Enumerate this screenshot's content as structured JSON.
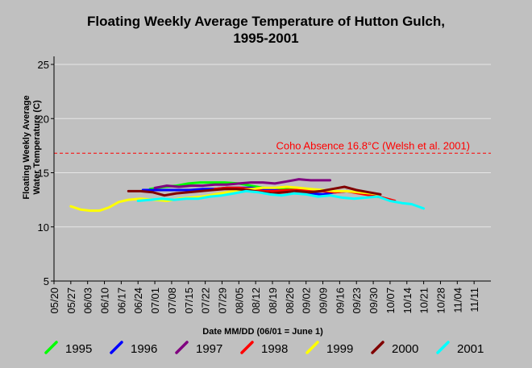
{
  "chart_data": {
    "type": "line",
    "title_line1": "Floating Weekly Average Temperature of Hutton Gulch,",
    "title_line2": "1995-2001",
    "ylabel_line1": "Floating Weekly Average",
    "ylabel_line2": "Water Temperature (C)",
    "xlabel": "Date MM/DD (06/01 = June 1)",
    "ylim": [
      5,
      25
    ],
    "yticks": [
      5,
      10,
      15,
      20,
      25
    ],
    "xticks": [
      "05/20",
      "05/27",
      "06/03",
      "06/10",
      "06/17",
      "06/24",
      "07/01",
      "07/08",
      "07/15",
      "07/22",
      "07/29",
      "08/05",
      "08/12",
      "08/19",
      "08/26",
      "09/02",
      "09/09",
      "09/16",
      "09/23",
      "09/30",
      "10/07",
      "10/14",
      "10/21",
      "10/28",
      "11/04",
      "11/11"
    ],
    "x_start": "05/20",
    "x_end": "11/18",
    "grid": "horizontal",
    "legend_position": "bottom",
    "threshold": {
      "value": 16.8,
      "label": "Coho Absence 16.8°C (Welsh et al. 2001)",
      "color": "#ff0000"
    },
    "series": [
      {
        "name": "1995",
        "color": "#00ff00",
        "x": [
          "06/29",
          "07/05",
          "07/10",
          "07/15",
          "07/20",
          "07/25",
          "07/30",
          "08/05",
          "08/10",
          "08/15",
          "08/20",
          "08/25",
          "08/30"
        ],
        "y": [
          13.5,
          13.7,
          13.8,
          14.0,
          14.1,
          14.1,
          14.1,
          14.0,
          13.8,
          13.6,
          13.5,
          13.5,
          13.4
        ]
      },
      {
        "name": "1996",
        "color": "#0000ff",
        "x": [
          "06/26",
          "07/01",
          "07/06",
          "07/11",
          "07/16",
          "07/21",
          "07/26",
          "07/31",
          "08/05",
          "08/10",
          "08/15",
          "08/20",
          "08/25",
          "08/30",
          "09/04",
          "09/09",
          "09/14",
          "09/19"
        ],
        "y": [
          13.4,
          13.4,
          13.4,
          13.4,
          13.4,
          13.5,
          13.5,
          13.6,
          13.6,
          13.6,
          13.5,
          13.4,
          13.3,
          13.2,
          13.1,
          13.0,
          13.2,
          13.3
        ]
      },
      {
        "name": "1997",
        "color": "#800080",
        "x": [
          "07/01",
          "07/06",
          "07/11",
          "07/16",
          "07/21",
          "07/26",
          "07/31",
          "08/05",
          "08/10",
          "08/15",
          "08/20",
          "08/25",
          "08/30",
          "09/04",
          "09/09",
          "09/12"
        ],
        "y": [
          13.6,
          13.8,
          13.7,
          13.8,
          13.8,
          13.9,
          13.9,
          14.0,
          14.1,
          14.1,
          14.0,
          14.2,
          14.4,
          14.3,
          14.3,
          14.3
        ]
      },
      {
        "name": "1998",
        "color": "#ff0000",
        "x": [
          "07/26",
          "07/31",
          "08/05",
          "08/10",
          "08/15",
          "08/20",
          "08/25",
          "08/30",
          "09/04",
          "09/09",
          "09/14",
          "09/19",
          "09/24",
          "09/29",
          "10/04",
          "10/09"
        ],
        "y": [
          13.5,
          13.6,
          13.6,
          13.5,
          13.3,
          13.3,
          13.4,
          13.4,
          13.4,
          13.3,
          13.2,
          13.3,
          13.1,
          12.9,
          12.7,
          12.4
        ]
      },
      {
        "name": "1999",
        "color": "#ffff00",
        "x": [
          "05/27",
          "05/31",
          "06/04",
          "06/08",
          "06/12",
          "06/16",
          "06/20",
          "06/25",
          "07/01",
          "07/06",
          "07/11",
          "07/16",
          "07/21",
          "07/26",
          "07/31",
          "08/05",
          "08/10",
          "08/15",
          "08/20",
          "08/25",
          "08/30",
          "09/04",
          "09/09",
          "09/14",
          "09/19",
          "09/24",
          "09/29",
          "10/02"
        ],
        "y": [
          11.9,
          11.6,
          11.5,
          11.5,
          11.8,
          12.3,
          12.5,
          12.6,
          12.5,
          12.4,
          12.6,
          12.7,
          12.8,
          13.0,
          13.2,
          13.4,
          13.5,
          13.6,
          13.6,
          13.7,
          13.6,
          13.5,
          13.4,
          13.3,
          13.3,
          13.2,
          13.1,
          13.0
        ]
      },
      {
        "name": "2000",
        "color": "#800000",
        "x": [
          "06/20",
          "06/25",
          "06/30",
          "07/05",
          "07/10",
          "07/15",
          "07/20",
          "07/25",
          "07/30",
          "08/04",
          "08/09",
          "08/14",
          "08/19",
          "08/24",
          "08/29",
          "09/03",
          "09/08",
          "09/13",
          "09/18",
          "09/23",
          "09/28",
          "10/03"
        ],
        "y": [
          13.3,
          13.3,
          13.2,
          12.9,
          13.1,
          13.2,
          13.3,
          13.4,
          13.5,
          13.5,
          13.4,
          13.2,
          13.1,
          13.2,
          13.3,
          13.2,
          13.3,
          13.5,
          13.7,
          13.4,
          13.2,
          13.0
        ]
      },
      {
        "name": "2001",
        "color": "#00ffff",
        "x": [
          "06/24",
          "06/29",
          "07/04",
          "07/09",
          "07/14",
          "07/19",
          "07/24",
          "07/29",
          "08/03",
          "08/08",
          "08/13",
          "08/18",
          "08/23",
          "08/28",
          "09/02",
          "09/07",
          "09/12",
          "09/17",
          "09/22",
          "09/27",
          "10/02",
          "10/07",
          "10/12",
          "10/16",
          "10/21"
        ],
        "y": [
          12.4,
          12.5,
          12.6,
          12.5,
          12.6,
          12.6,
          12.8,
          12.9,
          13.1,
          13.3,
          13.2,
          13.0,
          12.9,
          13.1,
          13.0,
          12.8,
          12.9,
          12.7,
          12.6,
          12.7,
          12.8,
          12.4,
          12.2,
          12.1,
          11.7
        ]
      }
    ]
  }
}
